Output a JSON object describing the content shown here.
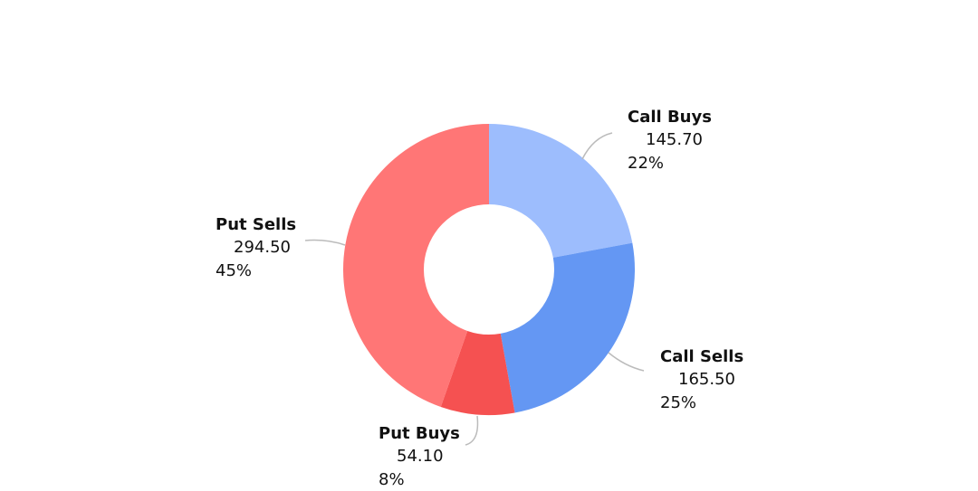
{
  "chart_data": {
    "type": "donut",
    "categories": [
      "Call Buys",
      "Call Sells",
      "Put Buys",
      "Put Sells"
    ],
    "values": [
      145.7,
      165.5,
      54.1,
      294.5
    ],
    "value_labels": [
      "145.70",
      "165.50",
      "54.10",
      "294.50"
    ],
    "percents": [
      {
        "value": 22,
        "label": "22%"
      },
      {
        "value": 25,
        "label": "25%"
      },
      {
        "value": 8,
        "label": "8%"
      },
      {
        "value": 45,
        "label": "45%"
      }
    ],
    "colors": [
      "#9dbdfd",
      "#6497f3",
      "#f55151",
      "#ff7676"
    ]
  }
}
